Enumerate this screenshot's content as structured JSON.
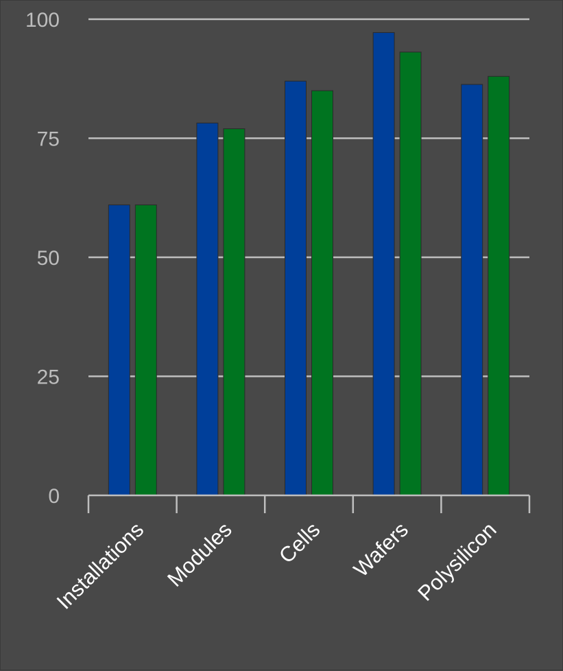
{
  "chart_data": {
    "type": "bar",
    "title": "",
    "xlabel": "",
    "ylabel": "",
    "categories": [
      "Installations",
      "Modules",
      "Cells",
      "Wafers",
      "Polysilicon"
    ],
    "series": [
      {
        "values": [
          61,
          78.2,
          87,
          97.2,
          86.3
        ],
        "color": "#003f9a"
      },
      {
        "values": [
          61,
          77,
          85,
          93.1,
          88
        ],
        "color": "#007420"
      }
    ],
    "ylim": [
      0,
      100
    ],
    "yticks": [
      0,
      25,
      50,
      75,
      100
    ],
    "grid": true,
    "legend": "none",
    "colors": {
      "background": "#484848",
      "grid": "#bfbfbf",
      "axis": "#bfbfbf",
      "tick_text": "#bdbdbd",
      "category_text": "#ffffff",
      "bar_edge": "#2a2a2a"
    }
  }
}
